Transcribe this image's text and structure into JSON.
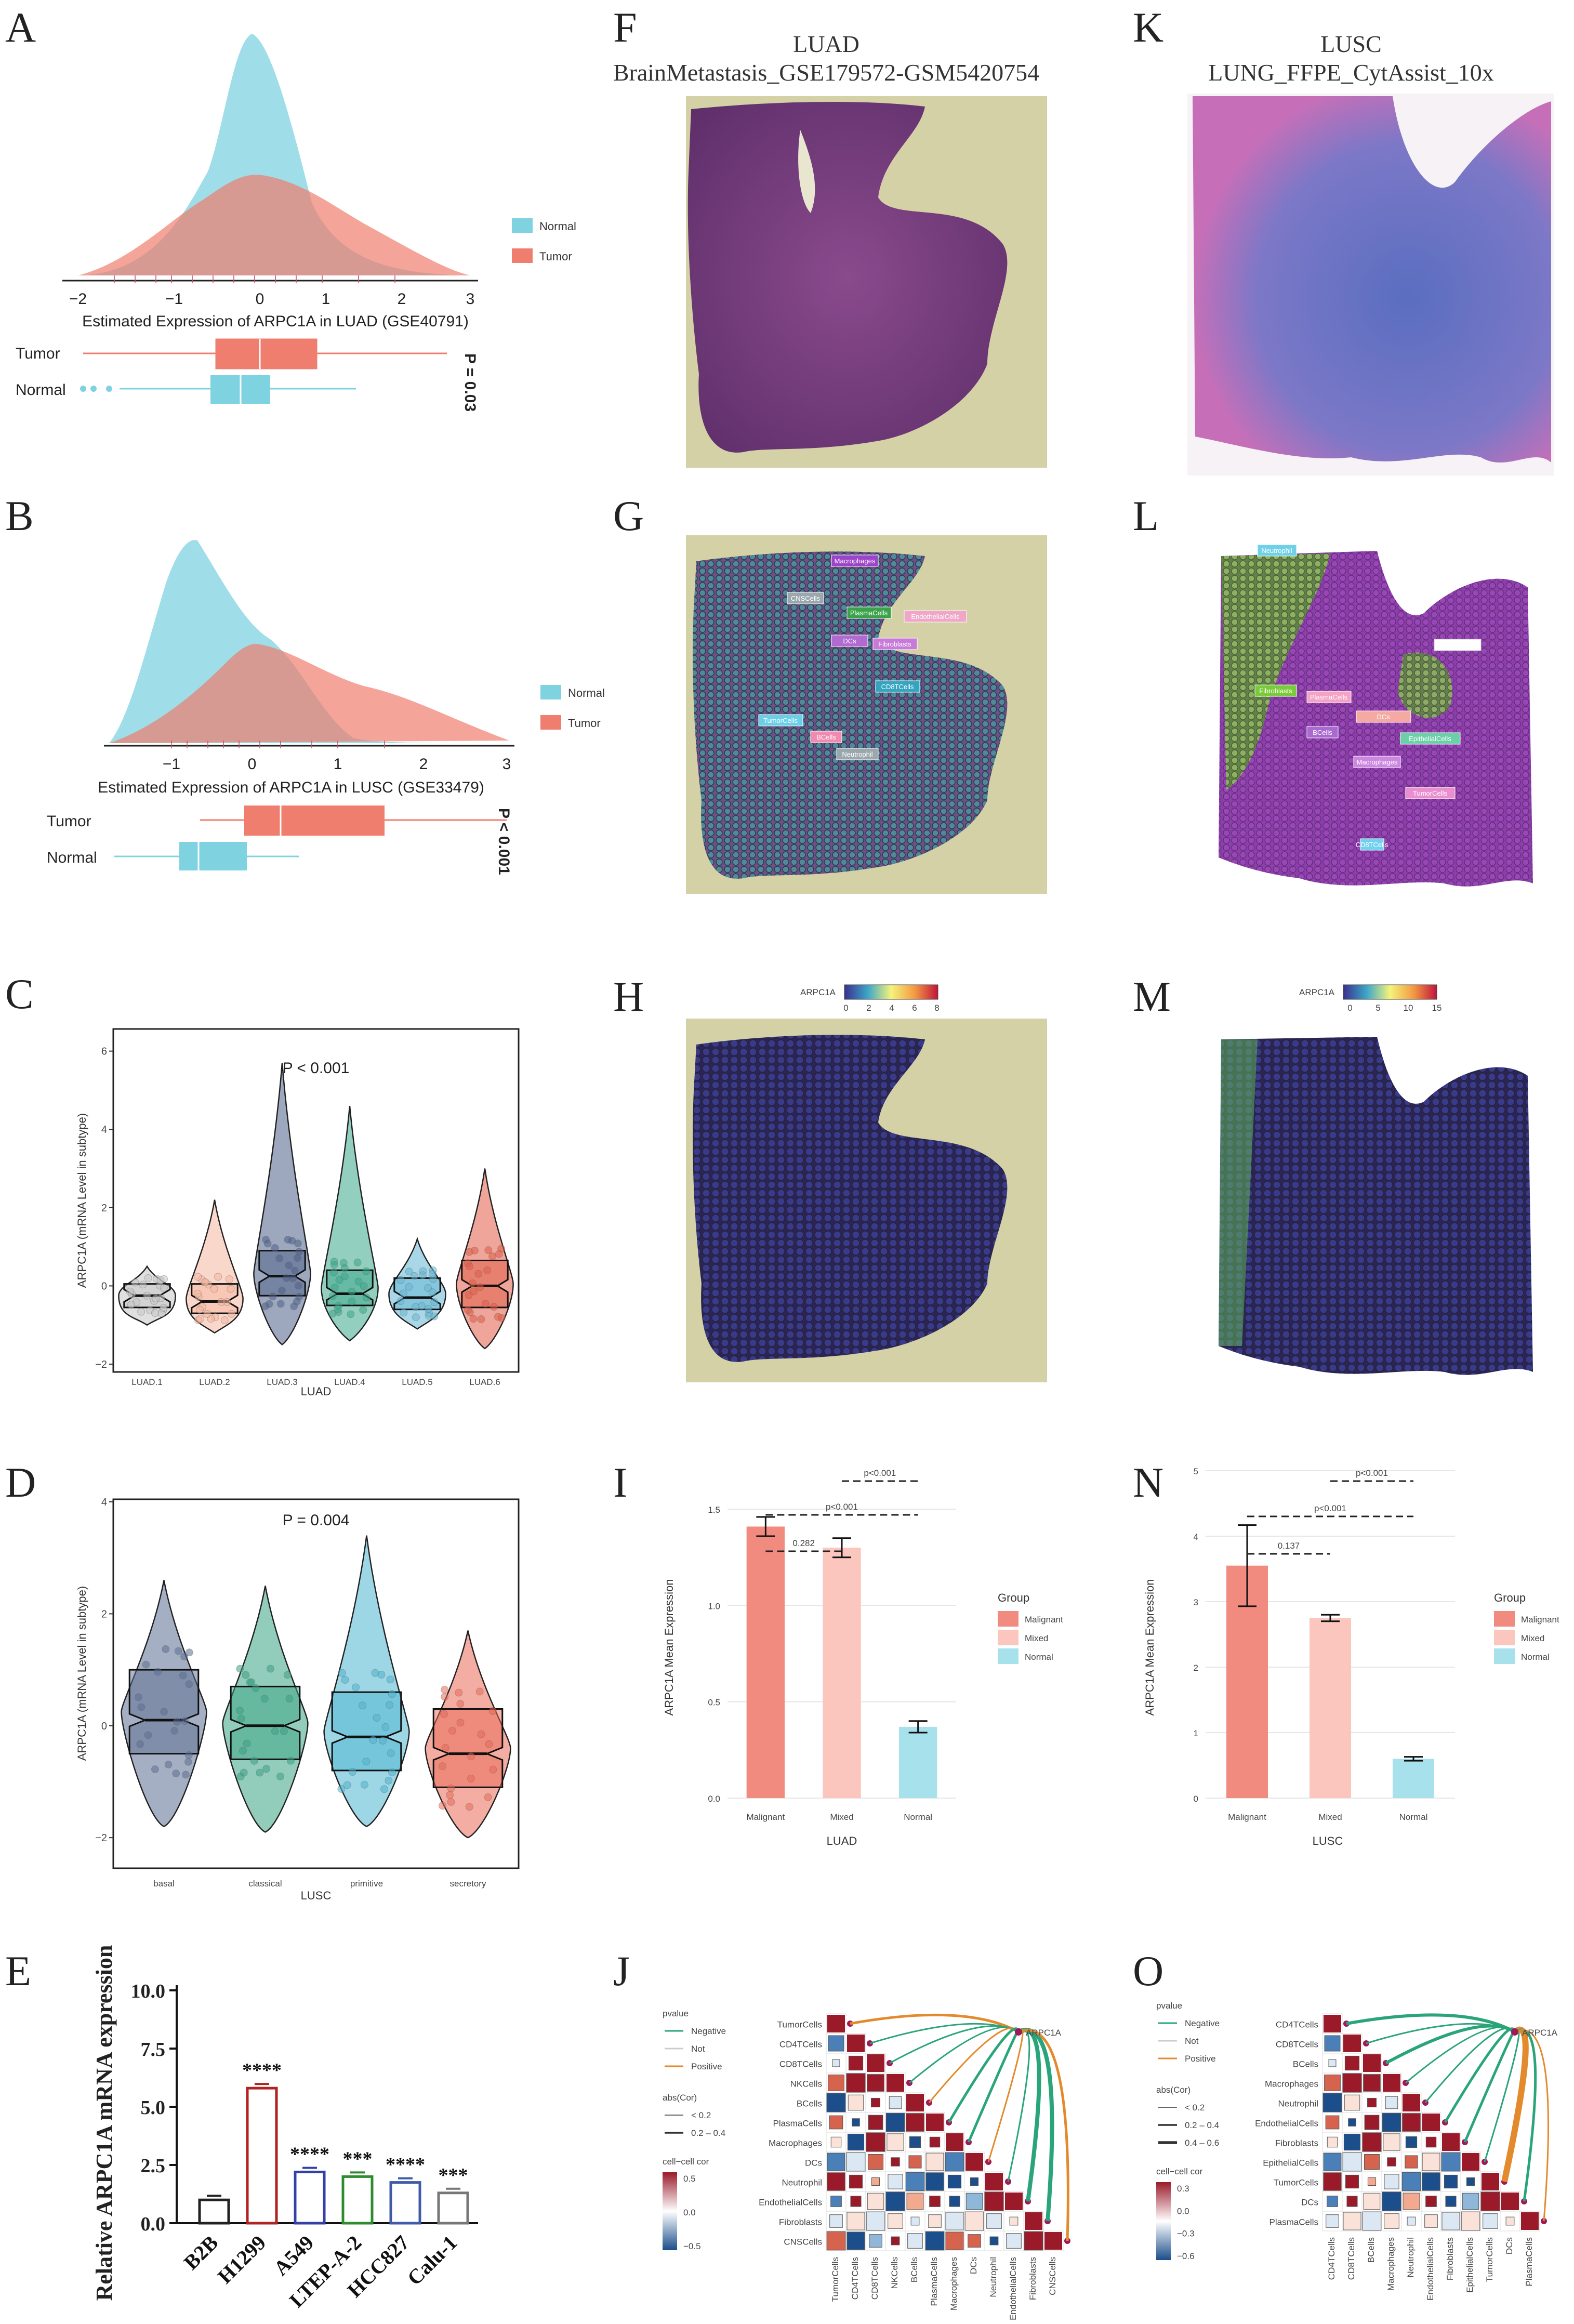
{
  "panels": {
    "A": {
      "label": "A",
      "xlabel": "Estimated Expression of ARPC1A in LUAD (GSE40791)",
      "legend": [
        "Normal",
        "Tumor"
      ],
      "box_labels": [
        "Tumor",
        "Normal"
      ],
      "pvalue": "P = 0.03",
      "xticks": [
        "−2",
        "−1",
        "0",
        "1",
        "2",
        "3"
      ]
    },
    "B": {
      "label": "B",
      "xlabel": "Estimated Expression of ARPC1A in LUSC (GSE33479)",
      "legend": [
        "Normal",
        "Tumor"
      ],
      "box_labels": [
        "Tumor",
        "Normal"
      ],
      "pvalue": "P < 0.001",
      "xticks": [
        "−1",
        "0",
        "1",
        "2",
        "3"
      ]
    },
    "C": {
      "label": "C",
      "ylabel": "ARPC1A (mRNA Level in subtype)",
      "xlabel": "LUAD",
      "pvalue": "P < 0.001",
      "yticks": [
        "−2",
        "0",
        "2",
        "4",
        "6"
      ]
    },
    "D": {
      "label": "D",
      "ylabel": "ARPC1A (mRNA Level in subtype)",
      "xlabel": "LUSC",
      "pvalue": "P = 0.004",
      "yticks": [
        "−2",
        "0",
        "2",
        "4"
      ]
    },
    "E": {
      "label": "E",
      "ylabel": "Relative ARPC1A mRNA expression",
      "yticks": [
        "0.0",
        "2.5",
        "5.0",
        "7.5",
        "10.0"
      ]
    },
    "F": {
      "label": "F",
      "title1": "LUAD",
      "title2": "BrainMetastasis_GSE179572-GSM5420754"
    },
    "G": {
      "label": "G",
      "tags": [
        "Macrophages",
        "CNSCells",
        "PlasmaCells",
        "EndothelialCells",
        "DCs",
        "Fibroblasts",
        "CD8TCells",
        "TumorCells",
        "BCells",
        "Neutrophil"
      ]
    },
    "H": {
      "label": "H",
      "legend_title": "ARPC1A",
      "ticks": [
        "0",
        "2",
        "4",
        "6",
        "8"
      ]
    },
    "I": {
      "label": "I",
      "ylabel": "ARPC1A Mean Expression",
      "xlabel": "LUAD",
      "legend_title": "Group",
      "comparisons": [
        "0.282",
        "p<0.001",
        "p<0.001"
      ],
      "yticks": [
        "0.0",
        "0.5",
        "1.0",
        "1.5"
      ]
    },
    "J": {
      "label": "J",
      "legend": {
        "pvalue_title": "pvalue",
        "pvalue_items": [
          "Negative",
          "Not",
          "Positive"
        ],
        "abs_title": "abs(Cor)",
        "abs_items": [
          "< 0.2",
          "0.2 – 0.4"
        ],
        "cor_title": "cell−cell cor",
        "cor_ticks": [
          "0.5",
          "0.0",
          "−0.5"
        ]
      },
      "target": "ARPC1A",
      "cells": [
        "TumorCells",
        "CD4TCells",
        "CD8TCells",
        "NKCells",
        "BCells",
        "PlasmaCells",
        "Macrophages",
        "DCs",
        "Neutrophil",
        "EndothelialCells",
        "Fibroblasts",
        "CNSCells"
      ]
    },
    "K": {
      "label": "K",
      "title1": "LUSC",
      "title2": "LUNG_FFPE_CytAssist_10x"
    },
    "L": {
      "label": "L",
      "tags": [
        "Neutrophil",
        "CD4TCells",
        "Fibroblasts",
        "PlasmaCells",
        "BCells",
        "DCs",
        "EpithelialCells",
        "Macrophages",
        "TumorCells",
        "CD8TCells"
      ]
    },
    "M": {
      "label": "M",
      "legend_title": "ARPC1A",
      "ticks": [
        "0",
        "5",
        "10",
        "15"
      ]
    },
    "N": {
      "label": "N",
      "ylabel": "ARPC1A Mean Expression",
      "xlabel": "LUSC",
      "legend_title": "Group",
      "comparisons": [
        "0.137",
        "p<0.001",
        "p<0.001"
      ],
      "yticks": [
        "0",
        "1",
        "2",
        "3",
        "4",
        "5"
      ]
    },
    "O": {
      "label": "O",
      "legend": {
        "pvalue_title": "pvalue",
        "pvalue_items": [
          "Negative",
          "Not",
          "Positive"
        ],
        "abs_title": "abs(Cor)",
        "abs_items": [
          "< 0.2",
          "0.2 – 0.4",
          "0.4 – 0.6"
        ],
        "cor_title": "cell−cell cor",
        "cor_ticks": [
          "0.3",
          "0.0",
          "−0.3",
          "−0.6"
        ]
      },
      "target": "ARPC1A",
      "cells": [
        "CD4TCells",
        "CD8TCells",
        "BCells",
        "Macrophages",
        "Neutrophil",
        "EndothelialCells",
        "Fibroblasts",
        "EpithelialCells",
        "TumorCells",
        "DCs",
        "PlasmaCells"
      ]
    }
  },
  "colors": {
    "normal": "#7fd3e0",
    "tumor": "#f07e6e",
    "malignant": "#f28b7f",
    "mixed": "#fbc6be",
    "normal_bar": "#a6e1ec",
    "he_pink": "#b25aa6",
    "he_blue": "#6a7ec6",
    "tissue_bg": "#d5d1a6"
  },
  "chart_data": [
    {
      "type": "bar",
      "id": "C",
      "title": "P < 0.001",
      "xlabel": "LUAD",
      "ylabel": "ARPC1A (mRNA Level in subtype)",
      "categories": [
        "LUAD.1",
        "LUAD.2",
        "LUAD.3",
        "LUAD.4",
        "LUAD.5",
        "LUAD.6"
      ],
      "medians": [
        -0.25,
        -0.4,
        0.25,
        -0.2,
        -0.3,
        0.0
      ],
      "q1": [
        -0.55,
        -0.7,
        -0.25,
        -0.5,
        -0.6,
        -0.55
      ],
      "q3": [
        0.05,
        0.05,
        0.9,
        0.4,
        0.2,
        0.65
      ],
      "mins": [
        -1.0,
        -1.2,
        -1.5,
        -1.4,
        -1.1,
        -1.6
      ],
      "maxs": [
        0.5,
        2.2,
        5.7,
        4.6,
        1.2,
        3.0
      ],
      "colors": [
        "#c6c6c6",
        "#f6b7a0",
        "#4d6088",
        "#3aa88a",
        "#64b7d4",
        "#e25b45"
      ],
      "ylim": [
        -2,
        6.5
      ]
    },
    {
      "type": "bar",
      "id": "D",
      "title": "P = 0.004",
      "xlabel": "LUSC",
      "ylabel": "ARPC1A (mRNA Level in subtype)",
      "categories": [
        "basal",
        "classical",
        "primitive",
        "secretory"
      ],
      "medians": [
        0.1,
        0.0,
        -0.2,
        -0.5
      ],
      "q1": [
        -0.5,
        -0.6,
        -0.8,
        -1.1
      ],
      "q3": [
        1.0,
        0.7,
        0.6,
        0.3
      ],
      "mins": [
        -1.8,
        -1.9,
        -1.8,
        -2.0
      ],
      "maxs": [
        2.6,
        2.5,
        3.4,
        1.7
      ],
      "colors": [
        "#5b6d92",
        "#39a383",
        "#4db5d0",
        "#ea6a56"
      ],
      "ylim": [
        -2.5,
        4
      ]
    },
    {
      "type": "bar",
      "id": "E",
      "ylabel": "Relative ARPC1A mRNA expression",
      "categories": [
        "B2B",
        "H1299",
        "A549",
        "LTEP-A-2",
        "HCC827",
        "Calu-1"
      ],
      "values": [
        1.0,
        5.8,
        2.2,
        2.0,
        1.75,
        1.3
      ],
      "significance": [
        "",
        "****",
        "****",
        "***",
        "****",
        "***"
      ],
      "colors": [
        "#222222",
        "#b22222",
        "#3440a8",
        "#2e8b2e",
        "#3f5aa8",
        "#777777"
      ],
      "ylim": [
        0,
        10
      ]
    },
    {
      "type": "bar",
      "id": "I",
      "xlabel": "LUAD",
      "ylabel": "ARPC1A Mean Expression",
      "categories": [
        "Malignant",
        "Mixed",
        "Normal"
      ],
      "values": [
        1.41,
        1.3,
        0.37
      ],
      "errors": [
        0.05,
        0.05,
        0.03
      ],
      "ylim": [
        0,
        1.7
      ]
    },
    {
      "type": "bar",
      "id": "N",
      "xlabel": "LUSC",
      "ylabel": "ARPC1A Mean Expression",
      "categories": [
        "Malignant",
        "Mixed",
        "Normal"
      ],
      "values": [
        3.55,
        2.75,
        0.6
      ],
      "errors": [
        0.62,
        0.05,
        0.03
      ],
      "ylim": [
        0,
        5
      ]
    }
  ]
}
